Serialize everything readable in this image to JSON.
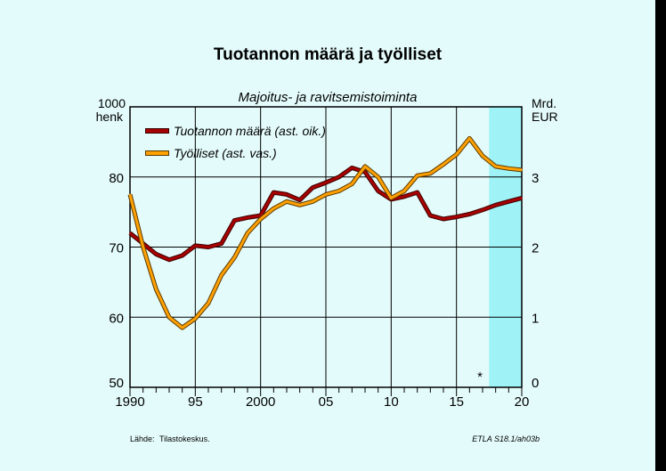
{
  "chart_data": {
    "type": "line",
    "title": "Tuotannon määrä ja työlliset",
    "subtitle": "Majoitus- ja ravitsemistoiminta",
    "left_axis": {
      "unit_line1": "1000",
      "unit_line2": "henk",
      "ylim": [
        50,
        90
      ],
      "ticks": [
        50,
        60,
        70,
        80
      ]
    },
    "right_axis": {
      "unit_line1": "Mrd.",
      "unit_line2": "EUR",
      "ylim": [
        0,
        4
      ],
      "ticks": [
        0,
        1,
        2,
        3
      ]
    },
    "x_axis": {
      "xlim": [
        1990,
        2020
      ],
      "ticks": [
        1990,
        1995,
        2000,
        2005,
        2010,
        2015,
        2020
      ],
      "tick_labels": [
        "1990",
        "95",
        "2000",
        "05",
        "10",
        "15",
        "20"
      ]
    },
    "forecast_from": 2017.5,
    "forecast_marker": "*",
    "grid": true,
    "legend_position": "top-left",
    "colors": {
      "production": "#a80000",
      "employed": "#ffa000",
      "forecast_band": "#9ff3f7",
      "background": "#e4fbfb"
    },
    "series": [
      {
        "name": "Tuotannon määrä (ast. oik.)",
        "axis": "right",
        "x": [
          1990,
          1991,
          1992,
          1993,
          1994,
          1995,
          1996,
          1997,
          1998,
          1999,
          2000,
          2001,
          2002,
          2003,
          2004,
          2005,
          2006,
          2007,
          2008,
          2009,
          2010,
          2011,
          2012,
          2013,
          2014,
          2015,
          2016,
          2017,
          2018,
          2019,
          2020
        ],
        "values": [
          2.2,
          2.05,
          1.9,
          1.82,
          1.88,
          2.02,
          2.0,
          2.05,
          2.38,
          2.42,
          2.45,
          2.78,
          2.75,
          2.67,
          2.85,
          2.92,
          3.0,
          3.13,
          3.07,
          2.8,
          2.68,
          2.72,
          2.78,
          2.45,
          2.4,
          2.43,
          2.47,
          2.53,
          2.6,
          2.65,
          2.7
        ]
      },
      {
        "name": "Työlliset (ast. vas.)",
        "axis": "left",
        "x": [
          1990,
          1991,
          1992,
          1993,
          1994,
          1995,
          1996,
          1997,
          1998,
          1999,
          2000,
          2001,
          2002,
          2003,
          2004,
          2005,
          2006,
          2007,
          2008,
          2009,
          2010,
          2011,
          2012,
          2013,
          2014,
          2015,
          2016,
          2017,
          2018,
          2019,
          2020
        ],
        "values": [
          77.5,
          70,
          64,
          60,
          58.5,
          59.8,
          62,
          66,
          68.5,
          72,
          74,
          75.5,
          76.5,
          76,
          76.5,
          77.5,
          78,
          79,
          81.5,
          80,
          77,
          78,
          80.2,
          80.5,
          81.8,
          83.2,
          85.5,
          83,
          81.5,
          81.2,
          81.0
        ]
      }
    ],
    "footer": {
      "source_label": "Lähde:",
      "source": "Tilastokeskus.",
      "code": "ETLA S18.1/ah03b"
    }
  }
}
